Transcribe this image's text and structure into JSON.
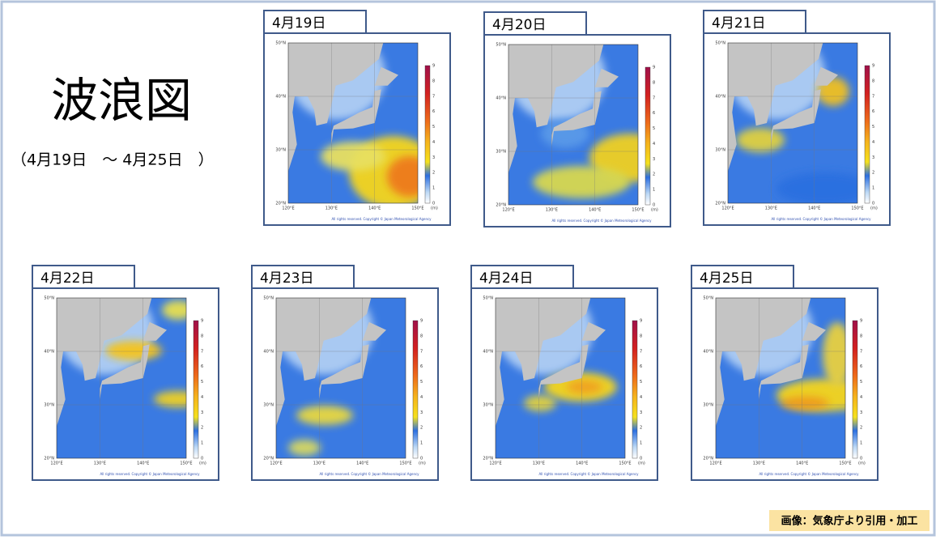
{
  "title": "波浪図",
  "subtitle": "（4月19日　～ 4月25日　）",
  "dates": [
    "4月19日",
    "4月20日",
    "4月21日",
    "4月22日",
    "4月23日",
    "4月24日",
    "4月25日"
  ],
  "map": {
    "lat_labels": [
      "50°N",
      "40°N",
      "30°N",
      "20°N"
    ],
    "lon_labels": [
      "120°E",
      "130°E",
      "140°E",
      "150°E"
    ],
    "colorbar_ticks": [
      0,
      1,
      2,
      3,
      4,
      5,
      6,
      7,
      8,
      9
    ],
    "unit": "(m)",
    "copyright": "All rights reserved. Copyright © Japan Meteorological Agency"
  },
  "credit": "画像：気象庁より引用・加工"
}
